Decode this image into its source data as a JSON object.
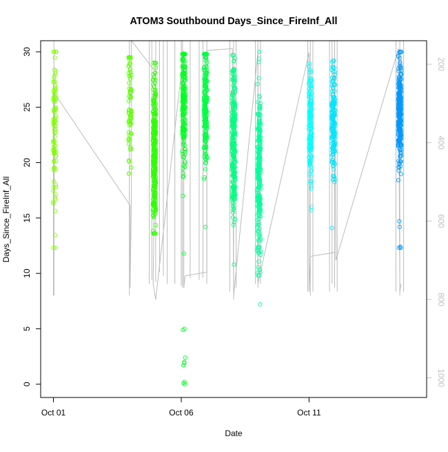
{
  "chart_data": {
    "type": "scatter",
    "title": "ATOM3 Southbound Days_Since_FireInf_All",
    "xlabel": "Date",
    "ylabel": "Days_Since_FireInf_All",
    "x_ticks": [
      {
        "label": "Oct 01",
        "day": 1
      },
      {
        "label": "Oct 06",
        "day": 6
      },
      {
        "label": "Oct 11",
        "day": 11
      }
    ],
    "xlim_days": [
      0.5,
      15.6
    ],
    "ylim": [
      -1.2,
      31.0
    ],
    "y_ticks": [
      0,
      5,
      10,
      15,
      20,
      25,
      30
    ],
    "y2_ticks": [
      200,
      400,
      600,
      800,
      1000
    ],
    "y2lim": [
      1050,
      140
    ],
    "y2_color": "#c0c0c0",
    "grid": false,
    "legend": "none",
    "series": [
      {
        "day": 1.05,
        "color": "#80ff00",
        "y_center": 22.5,
        "y_spread": 4.2,
        "y_min": 12.3,
        "y_max": 30.0,
        "n": 90,
        "extra_values": []
      },
      {
        "day": 4.0,
        "color": "#5cff00",
        "y_center": 25.0,
        "y_spread": 2.8,
        "y_min": 19.0,
        "y_max": 29.5,
        "n": 70,
        "extra_values": []
      },
      {
        "day": 4.95,
        "color": "#2cff00",
        "y_center": 21.0,
        "y_spread": 3.3,
        "y_min": 13.6,
        "y_max": 29.0,
        "n": 280,
        "extra_values": []
      },
      {
        "day": 6.1,
        "color": "#00ff20",
        "y_center": 25.0,
        "y_spread": 3.0,
        "y_min": 17.0,
        "y_max": 29.8,
        "n": 200,
        "extra_values": [
          11.8,
          5.0,
          4.9,
          2.4,
          2.0,
          1.9,
          1.7,
          0.2,
          0.1,
          0.0
        ]
      },
      {
        "day": 6.95,
        "color": "#00ff40",
        "y_center": 25.2,
        "y_spread": 2.6,
        "y_min": 14.2,
        "y_max": 29.8,
        "n": 220,
        "extra_values": []
      },
      {
        "day": 8.05,
        "color": "#00ff80",
        "y_center": 22.0,
        "y_spread": 3.8,
        "y_min": 10.8,
        "y_max": 29.7,
        "n": 260,
        "extra_values": []
      },
      {
        "day": 9.05,
        "color": "#00ff99",
        "y_center": 19.0,
        "y_spread": 3.8,
        "y_min": 9.8,
        "y_max": 30.0,
        "n": 230,
        "extra_values": [
          7.2
        ]
      },
      {
        "day": 11.05,
        "color": "#00ffff",
        "y_center": 23.5,
        "y_spread": 2.6,
        "y_min": 15.7,
        "y_max": 28.9,
        "n": 150,
        "extra_values": []
      },
      {
        "day": 11.95,
        "color": "#00e5ff",
        "y_center": 23.5,
        "y_spread": 2.6,
        "y_min": 14.1,
        "y_max": 29.2,
        "n": 170,
        "extra_values": []
      },
      {
        "day": 14.55,
        "color": "#0099ff",
        "y_center": 24.5,
        "y_spread": 2.4,
        "y_min": 12.3,
        "y_max": 30.0,
        "n": 260,
        "extra_values": [
          14.2,
          14.7,
          12.4,
          12.3
        ]
      }
    ],
    "secondary_line": {
      "color": "#bbbbbb",
      "points": [
        [
          1.0,
          270
        ],
        [
          1.0,
          790
        ],
        [
          1.05,
          275
        ],
        [
          4.0,
          560
        ],
        [
          4.0,
          770
        ],
        [
          4.05,
          530
        ],
        [
          4.05,
          140
        ],
        [
          5.0,
          220
        ],
        [
          4.9,
          760
        ],
        [
          5.0,
          800
        ],
        [
          6.1,
          165
        ],
        [
          6.1,
          770
        ],
        [
          6.15,
          740
        ],
        [
          7.0,
          730
        ],
        [
          7.0,
          165
        ],
        [
          8.0,
          160
        ],
        [
          8.05,
          790
        ],
        [
          9.0,
          170
        ],
        [
          9.0,
          760
        ],
        [
          11.0,
          170
        ],
        [
          11.0,
          780
        ],
        [
          11.05,
          690
        ],
        [
          12.0,
          680
        ],
        [
          12.0,
          160
        ],
        [
          12.05,
          700
        ],
        [
          14.5,
          160
        ],
        [
          14.55,
          780
        ],
        [
          14.6,
          760
        ]
      ],
      "spikes": [
        {
          "day": 1.02,
          "top": 140,
          "bottom": 790
        },
        {
          "day": 3.97,
          "top": 140,
          "bottom": 790
        },
        {
          "day": 4.75,
          "top": 140,
          "bottom": 760
        },
        {
          "day": 4.85,
          "top": 140,
          "bottom": 750
        },
        {
          "day": 5.0,
          "top": 140,
          "bottom": 755
        },
        {
          "day": 5.15,
          "top": 140,
          "bottom": 730
        },
        {
          "day": 5.3,
          "top": 140,
          "bottom": 740
        },
        {
          "day": 5.45,
          "top": 140,
          "bottom": 760
        },
        {
          "day": 5.75,
          "top": 140,
          "bottom": 760
        },
        {
          "day": 6.0,
          "top": 140,
          "bottom": 765
        },
        {
          "day": 6.05,
          "top": 140,
          "bottom": 770
        },
        {
          "day": 6.35,
          "top": 140,
          "bottom": 745
        },
        {
          "day": 6.7,
          "top": 140,
          "bottom": 750
        },
        {
          "day": 6.85,
          "top": 140,
          "bottom": 745
        },
        {
          "day": 7.0,
          "top": 140,
          "bottom": 760
        },
        {
          "day": 7.9,
          "top": 140,
          "bottom": 780
        },
        {
          "day": 8.05,
          "top": 140,
          "bottom": 800
        },
        {
          "day": 8.15,
          "top": 140,
          "bottom": 770
        },
        {
          "day": 8.9,
          "top": 140,
          "bottom": 760
        },
        {
          "day": 9.0,
          "top": 140,
          "bottom": 770
        },
        {
          "day": 9.1,
          "top": 140,
          "bottom": 760
        },
        {
          "day": 10.95,
          "top": 140,
          "bottom": 780
        },
        {
          "day": 11.05,
          "top": 140,
          "bottom": 790
        },
        {
          "day": 11.15,
          "top": 140,
          "bottom": 780
        },
        {
          "day": 11.8,
          "top": 140,
          "bottom": 780
        },
        {
          "day": 11.9,
          "top": 140,
          "bottom": 760
        },
        {
          "day": 12.0,
          "top": 140,
          "bottom": 770
        },
        {
          "day": 12.1,
          "top": 140,
          "bottom": 780
        },
        {
          "day": 14.4,
          "top": 140,
          "bottom": 780
        },
        {
          "day": 14.55,
          "top": 140,
          "bottom": 790
        },
        {
          "day": 14.7,
          "top": 140,
          "bottom": 780
        }
      ]
    }
  }
}
